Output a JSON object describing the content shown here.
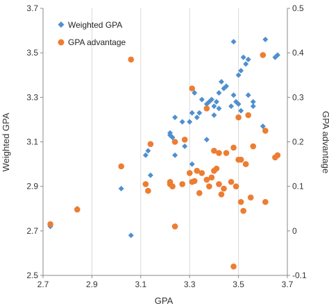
{
  "chart_data": {
    "type": "scatter",
    "xlabel": "GPA",
    "ylabel": "Weighted GPA",
    "y2label": "GPA advantage",
    "xlim": [
      2.7,
      3.7
    ],
    "ylim": [
      2.5,
      3.7
    ],
    "y2lim": [
      -0.1,
      0.5
    ],
    "x_ticks": [
      "2.7",
      "2.9",
      "3.1",
      "3.3",
      "3.5",
      "3.7"
    ],
    "y_ticks": [
      "2.5",
      "2.7",
      "2.9",
      "3.1",
      "3.3",
      "3.5",
      "3.7"
    ],
    "y2_ticks": [
      "-0.1",
      "0",
      "0.1",
      "0.2",
      "0.3",
      "0.4",
      "0.5"
    ],
    "grid": "vertical",
    "legend_position": "top-left",
    "series": [
      {
        "name": "Weighted GPA",
        "axis": "left",
        "marker": "diamond",
        "color": "#4f8fcf",
        "points": [
          [
            2.73,
            2.72
          ],
          [
            2.84,
            2.8
          ],
          [
            3.02,
            2.89
          ],
          [
            3.06,
            2.68
          ],
          [
            3.12,
            3.04
          ],
          [
            3.13,
            3.06
          ],
          [
            3.14,
            2.95
          ],
          [
            3.22,
            3.14
          ],
          [
            3.22,
            3.13
          ],
          [
            3.23,
            3.12
          ],
          [
            3.24,
            3.04
          ],
          [
            3.24,
            3.21
          ],
          [
            3.27,
            3.19
          ],
          [
            3.28,
            3.08
          ],
          [
            3.3,
            3.19
          ],
          [
            3.31,
            3.0
          ],
          [
            3.31,
            3.23
          ],
          [
            3.32,
            3.32
          ],
          [
            3.33,
            3.21
          ],
          [
            3.34,
            3.23
          ],
          [
            3.35,
            3.29
          ],
          [
            3.37,
            3.11
          ],
          [
            3.37,
            3.27
          ],
          [
            3.38,
            3.28
          ],
          [
            3.39,
            3.29
          ],
          [
            3.4,
            3.26
          ],
          [
            3.4,
            3.22
          ],
          [
            3.41,
            3.28
          ],
          [
            3.42,
            3.32
          ],
          [
            3.42,
            3.25
          ],
          [
            3.43,
            3.37
          ],
          [
            3.44,
            3.34
          ],
          [
            3.45,
            3.35
          ],
          [
            3.47,
            3.26
          ],
          [
            3.48,
            3.55
          ],
          [
            3.48,
            3.31
          ],
          [
            3.49,
            3.28
          ],
          [
            3.5,
            3.27
          ],
          [
            3.5,
            3.4
          ],
          [
            3.51,
            3.24
          ],
          [
            3.51,
            3.42
          ],
          [
            3.52,
            3.48
          ],
          [
            3.53,
            3.45
          ],
          [
            3.54,
            3.31
          ],
          [
            3.54,
            3.47
          ],
          [
            3.56,
            3.28
          ],
          [
            3.56,
            3.26
          ],
          [
            3.6,
            3.17
          ],
          [
            3.61,
            3.56
          ],
          [
            3.65,
            3.48
          ],
          [
            3.66,
            3.49
          ]
        ]
      },
      {
        "name": "GPA advantage",
        "axis": "right",
        "marker": "circle",
        "color": "#ed7d31",
        "points": [
          [
            2.73,
            0.015
          ],
          [
            2.84,
            0.048
          ],
          [
            3.02,
            0.145
          ],
          [
            3.06,
            0.385
          ],
          [
            3.12,
            0.105
          ],
          [
            3.13,
            0.09
          ],
          [
            3.14,
            0.195
          ],
          [
            3.22,
            0.105
          ],
          [
            3.22,
            0.11
          ],
          [
            3.23,
            0.1
          ],
          [
            3.24,
            0.01
          ],
          [
            3.24,
            0.2
          ],
          [
            3.27,
            0.105
          ],
          [
            3.28,
            0.205
          ],
          [
            3.3,
            0.13
          ],
          [
            3.31,
            0.32
          ],
          [
            3.31,
            0.11
          ],
          [
            3.32,
            0.112
          ],
          [
            3.33,
            0.135
          ],
          [
            3.34,
            0.085
          ],
          [
            3.35,
            0.13
          ],
          [
            3.37,
            0.115
          ],
          [
            3.37,
            0.275
          ],
          [
            3.38,
            0.1
          ],
          [
            3.39,
            0.12
          ],
          [
            3.4,
            0.135
          ],
          [
            3.4,
            0.18
          ],
          [
            3.41,
            0.14
          ],
          [
            3.42,
            0.105
          ],
          [
            3.42,
            0.175
          ],
          [
            3.43,
            0.082
          ],
          [
            3.44,
            0.095
          ],
          [
            3.45,
            0.175
          ],
          [
            3.47,
            0.11
          ],
          [
            3.48,
            -0.08
          ],
          [
            3.48,
            0.187
          ],
          [
            3.49,
            0.1
          ],
          [
            3.5,
            0.16
          ],
          [
            3.5,
            0.255
          ],
          [
            3.51,
            0.16
          ],
          [
            3.51,
            0.065
          ],
          [
            3.52,
            0.045
          ],
          [
            3.53,
            0.15
          ],
          [
            3.54,
            0.26
          ],
          [
            3.55,
            0.075
          ],
          [
            3.56,
            0.19
          ],
          [
            3.6,
            0.395
          ],
          [
            3.61,
            0.225
          ],
          [
            3.61,
            0.065
          ],
          [
            3.65,
            0.165
          ],
          [
            3.66,
            0.17
          ]
        ]
      }
    ]
  }
}
